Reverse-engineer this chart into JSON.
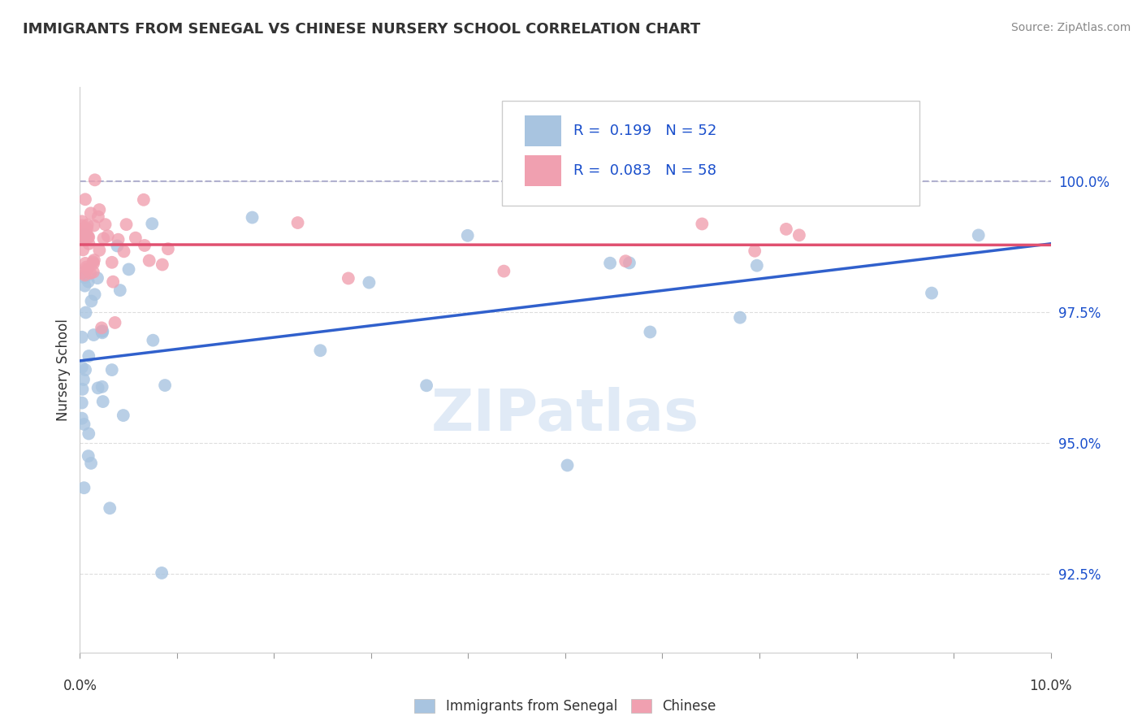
{
  "title": "IMMIGRANTS FROM SENEGAL VS CHINESE NURSERY SCHOOL CORRELATION CHART",
  "source": "Source: ZipAtlas.com",
  "ylabel": "Nursery School",
  "xlim": [
    0.0,
    10.0
  ],
  "ylim": [
    91.0,
    101.8
  ],
  "yticks": [
    92.5,
    95.0,
    97.5,
    100.0
  ],
  "ytick_labels": [
    "92.5%",
    "95.0%",
    "97.5%",
    "100.0%"
  ],
  "series1_name": "Immigrants from Senegal",
  "series1_color": "#a8c4e0",
  "series1_R": "0.199",
  "series1_N": "52",
  "series2_name": "Chinese",
  "series2_color": "#f0a0b0",
  "series2_R": "0.083",
  "series2_N": "58",
  "legend_R_color": "#1a4fcc",
  "trend1_color": "#3060cc",
  "trend2_color": "#e05070",
  "dashed_color": "#aaaacc",
  "background_color": "#ffffff",
  "title_color": "#333333",
  "grid_color": "#dddddd"
}
